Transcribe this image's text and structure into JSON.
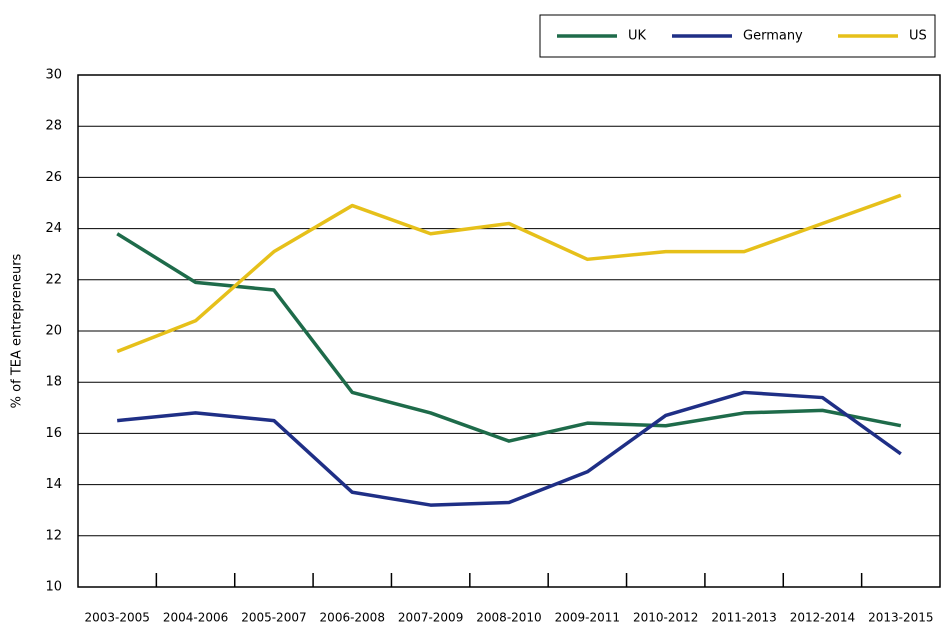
{
  "chart_data": {
    "type": "line",
    "y_label": "% of TEA entrepreneurs",
    "categories": [
      "2003-2005",
      "2004-2006",
      "2005-2007",
      "2006-2008",
      "2007-2009",
      "2008-2010",
      "2009-2011",
      "2010-2012",
      "2011-2013",
      "2012-2014",
      "2013-2015"
    ],
    "series": [
      {
        "name": "UK",
        "color": "#1e6b4a",
        "values": [
          23.8,
          21.9,
          21.6,
          17.6,
          16.8,
          15.7,
          16.4,
          16.3,
          16.8,
          16.9,
          16.3
        ]
      },
      {
        "name": "Germany",
        "color": "#1f2f86",
        "values": [
          16.5,
          16.8,
          16.5,
          13.7,
          13.2,
          13.3,
          14.5,
          16.7,
          17.6,
          17.4,
          15.2
        ]
      },
      {
        "name": "US",
        "color": "#e6c01a",
        "values": [
          19.2,
          20.4,
          23.1,
          24.9,
          23.8,
          24.2,
          22.8,
          23.1,
          23.1,
          24.2,
          25.3
        ]
      }
    ],
    "ylim": [
      10,
      30
    ],
    "yticks": [
      10,
      12,
      14,
      16,
      18,
      20,
      22,
      24,
      26,
      28,
      30
    ],
    "grid": true,
    "legend": "top-right"
  }
}
